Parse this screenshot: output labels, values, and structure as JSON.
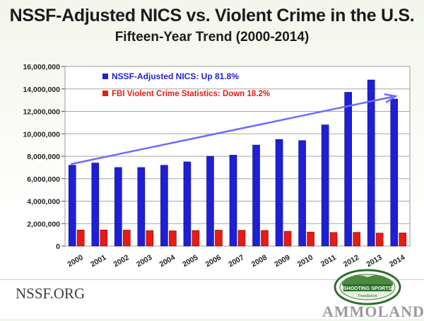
{
  "header": {
    "title": "NSSF-Adjusted NICS vs. Violent Crime in the U.S.",
    "subtitle": "Fifteen-Year Trend (2000-2014)"
  },
  "footer": {
    "site": "NSSF.ORG",
    "seal_text": [
      "SHOOTING SPORTS",
      "Foundation"
    ],
    "watermark": "AMMOLAND"
  },
  "colors": {
    "nics": "#1f1fd6",
    "crime": "#e81a12",
    "trend_arrow": "#6b6bff"
  },
  "chart_data": {
    "type": "bar",
    "categories": [
      "2000",
      "2001",
      "2002",
      "2003",
      "2004",
      "2005",
      "2006",
      "2007",
      "2008",
      "2009",
      "2010",
      "2011",
      "2012",
      "2013",
      "2014"
    ],
    "series": [
      {
        "name": "NSSF-Adjusted NICS: Up 81.8%",
        "values": [
          7200000,
          7400000,
          7000000,
          7000000,
          7200000,
          7500000,
          8000000,
          8100000,
          9000000,
          9500000,
          9400000,
          10800000,
          13700000,
          14800000,
          13100000
        ]
      },
      {
        "name": "FBI Violent Crime Statistics: Down 18.2%",
        "values": [
          1430000,
          1440000,
          1420000,
          1380000,
          1360000,
          1390000,
          1420000,
          1410000,
          1390000,
          1320000,
          1250000,
          1210000,
          1220000,
          1160000,
          1170000
        ]
      }
    ],
    "ylim": [
      0,
      16000000
    ],
    "yticks": [
      0,
      2000000,
      4000000,
      6000000,
      8000000,
      10000000,
      12000000,
      14000000,
      16000000
    ],
    "ytick_labels": [
      "0",
      "2,000,000",
      "4,000,000",
      "6,000,000",
      "8,000,000",
      "10,000,000",
      "12,000,000",
      "14,000,000",
      "16,000,000"
    ],
    "grid": true,
    "legend": "top-left",
    "annotation": {
      "type": "trend-arrow",
      "from": [
        "2000",
        7300000
      ],
      "to": [
        "2014",
        13300000
      ]
    }
  }
}
